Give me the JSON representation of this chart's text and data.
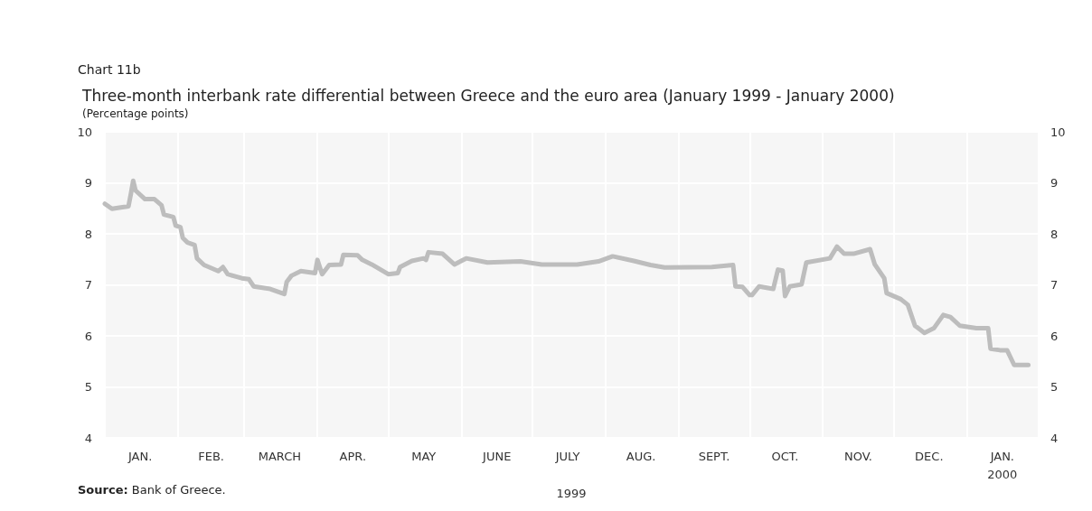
{
  "chart_data": {
    "type": "line",
    "title": "Three-month interbank rate differential between Greece and the euro area (January 1999 - January 2000)",
    "subtitle": "(Percentage points)",
    "annotations": [
      "Chart 11b",
      "Source: Bank of Greece."
    ],
    "x": [
      "1999-01-01",
      "1999-01-04",
      "1999-01-11",
      "1999-01-12",
      "1999-01-13",
      "1999-01-14",
      "1999-01-18",
      "1999-01-22",
      "1999-01-25",
      "1999-01-26",
      "1999-01-30",
      "1999-01-31",
      "1999-02-02",
      "1999-02-03",
      "1999-02-05",
      "1999-02-08",
      "1999-02-09",
      "1999-02-12",
      "1999-02-18",
      "1999-02-20",
      "1999-02-22",
      "1999-02-28",
      "1999-03-03",
      "1999-03-05",
      "1999-03-12",
      "1999-03-18",
      "1999-03-19",
      "1999-03-21",
      "1999-03-25",
      "1999-03-31",
      "1999-04-01",
      "1999-04-03",
      "1999-04-06",
      "1999-04-11",
      "1999-04-12",
      "1999-04-18",
      "1999-04-20",
      "1999-04-24",
      "1999-05-01",
      "1999-05-05",
      "1999-05-06",
      "1999-05-11",
      "1999-05-16",
      "1999-05-17",
      "1999-05-18",
      "1999-05-24",
      "1999-05-29",
      "1999-06-03",
      "1999-06-12",
      "1999-06-26",
      "1999-07-05",
      "1999-07-20",
      "1999-07-29",
      "1999-08-04",
      "1999-08-13",
      "1999-08-20",
      "1999-08-26",
      "1999-09-15",
      "1999-09-24",
      "1999-09-25",
      "1999-09-28",
      "1999-10-01",
      "1999-10-02",
      "1999-10-05",
      "1999-10-11",
      "1999-10-13",
      "1999-10-15",
      "1999-10-16",
      "1999-10-18",
      "1999-10-23",
      "1999-10-25",
      "1999-11-04",
      "1999-11-07",
      "1999-11-10",
      "1999-11-14",
      "1999-11-21",
      "1999-11-23",
      "1999-11-27",
      "1999-11-28",
      "1999-12-04",
      "1999-12-07",
      "1999-12-10",
      "1999-12-14",
      "1999-12-18",
      "1999-12-22",
      "1999-12-25",
      "1999-12-29",
      "2000-01-05",
      "2000-01-10",
      "2000-01-11",
      "2000-01-15",
      "2000-01-18",
      "2000-01-21",
      "2000-01-27"
    ],
    "series": [
      {
        "color": "#bdbdbd",
        "values": [
          8.59,
          8.49,
          8.54,
          8.78,
          9.04,
          8.85,
          8.68,
          8.68,
          8.56,
          8.38,
          8.33,
          8.16,
          8.13,
          7.92,
          7.83,
          7.78,
          7.52,
          7.39,
          7.27,
          7.35,
          7.21,
          7.13,
          7.11,
          6.97,
          6.92,
          6.82,
          7.06,
          7.18,
          7.27,
          7.23,
          7.49,
          7.21,
          7.39,
          7.4,
          7.59,
          7.58,
          7.49,
          7.4,
          7.21,
          7.23,
          7.35,
          7.47,
          7.52,
          7.49,
          7.64,
          7.61,
          7.4,
          7.52,
          7.44,
          7.46,
          7.4,
          7.4,
          7.46,
          7.56,
          7.47,
          7.39,
          7.34,
          7.35,
          7.39,
          6.97,
          6.96,
          6.8,
          6.8,
          6.97,
          6.92,
          7.3,
          7.28,
          6.78,
          6.97,
          7.01,
          7.44,
          7.52,
          7.75,
          7.61,
          7.61,
          7.7,
          7.4,
          7.13,
          6.84,
          6.72,
          6.61,
          6.2,
          6.06,
          6.15,
          6.41,
          6.37,
          6.2,
          6.15,
          6.15,
          5.75,
          5.72,
          5.72,
          5.43,
          5.43
        ]
      }
    ],
    "xlim": [
      "1999-01-01",
      "2000-01-31"
    ],
    "xticks": [
      {
        "value": "1999-01-01",
        "label": null
      },
      {
        "value": "1999-01-16",
        "label": "JAN."
      },
      {
        "value": "1999-02-01",
        "label": null
      },
      {
        "value": "1999-02-15",
        "label": "FEB."
      },
      {
        "value": "1999-03-01",
        "label": null
      },
      {
        "value": "1999-03-16",
        "label": "MARCH"
      },
      {
        "value": "1999-04-01",
        "label": null
      },
      {
        "value": "1999-04-16",
        "label": "APR."
      },
      {
        "value": "1999-05-01",
        "label": null
      },
      {
        "value": "1999-05-16",
        "label": "MAY"
      },
      {
        "value": "1999-06-01",
        "label": null
      },
      {
        "value": "1999-06-16",
        "label": "JUNE"
      },
      {
        "value": "1999-07-01",
        "label": null
      },
      {
        "value": "1999-07-16",
        "label": "JULY"
      },
      {
        "value": "1999-08-01",
        "label": null
      },
      {
        "value": "1999-08-16",
        "label": "AUG."
      },
      {
        "value": "1999-09-01",
        "label": null
      },
      {
        "value": "1999-09-16",
        "label": "SEPT."
      },
      {
        "value": "1999-10-01",
        "label": null
      },
      {
        "value": "1999-10-16",
        "label": "OCT."
      },
      {
        "value": "1999-11-01",
        "label": null
      },
      {
        "value": "1999-11-16",
        "label": "NOV."
      },
      {
        "value": "1999-12-01",
        "label": null
      },
      {
        "value": "1999-12-16",
        "label": "DEC."
      },
      {
        "value": "2000-01-01",
        "label": null
      },
      {
        "value": "2000-01-16",
        "label": "JAN.\n2000"
      }
    ],
    "xlabel": "1999",
    "ylim": [
      4,
      10
    ],
    "yticks": [
      4,
      5,
      6,
      7,
      8,
      9,
      10
    ],
    "y2lim": [
      4,
      10
    ],
    "y2ticks": [
      4,
      5,
      6,
      7,
      8,
      9,
      10
    ],
    "grid": true,
    "line_style": "solid",
    "marker": "none"
  }
}
